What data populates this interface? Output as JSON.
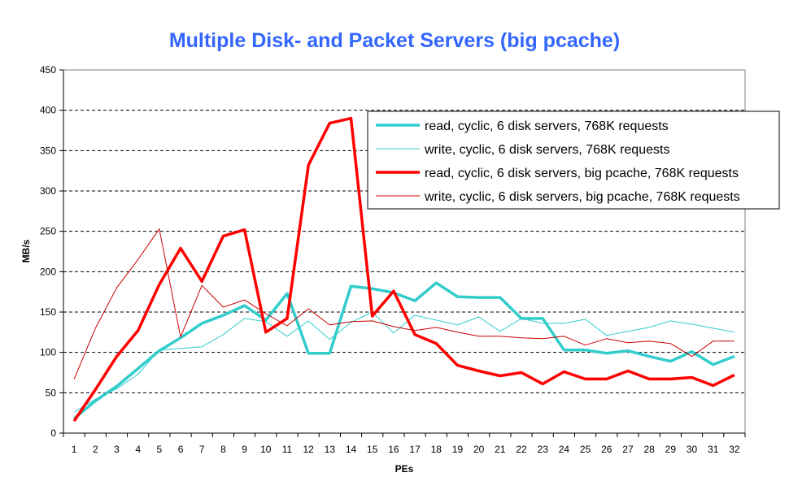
{
  "chart_data": {
    "type": "line",
    "title": "Multiple Disk- and Packet Servers (big pcache)",
    "xlabel": "PEs",
    "ylabel": "MB/s",
    "ylim": [
      0,
      450
    ],
    "yticks": [
      0,
      50,
      100,
      150,
      200,
      250,
      300,
      350,
      400,
      450
    ],
    "x": [
      1,
      2,
      3,
      4,
      5,
      6,
      7,
      8,
      9,
      10,
      11,
      12,
      13,
      14,
      15,
      16,
      17,
      18,
      19,
      20,
      21,
      22,
      23,
      24,
      25,
      26,
      27,
      28,
      29,
      30,
      31,
      32
    ],
    "grid": "horizontal dashed",
    "legend": "upper-right",
    "series": [
      {
        "name": "read, cyclic, 6 disk servers, 768K requests",
        "color": "#33cccc",
        "width": 3.5,
        "values": [
          18,
          40,
          58,
          80,
          102,
          118,
          136,
          146,
          158,
          140,
          173,
          99,
          99,
          182,
          179,
          174,
          164,
          186,
          169,
          168,
          168,
          142,
          142,
          103,
          103,
          99,
          102,
          95,
          89,
          101,
          85,
          95
        ]
      },
      {
        "name": "write, cyclic, 6 disk servers, 768K requests",
        "color": "#33cccc",
        "width": 1,
        "values": [
          26,
          42,
          55,
          73,
          103,
          105,
          107,
          122,
          142,
          138,
          120,
          139,
          116,
          137,
          150,
          124,
          146,
          140,
          134,
          144,
          126,
          142,
          136,
          136,
          141,
          121,
          126,
          131,
          139,
          135,
          130,
          125
        ]
      },
      {
        "name": "read, cyclic, 6 disk servers, big pcache, 768K requests",
        "color": "#ff0000",
        "width": 3.5,
        "values": [
          15,
          54,
          95,
          127,
          184,
          229,
          188,
          244,
          252,
          125,
          142,
          332,
          384,
          390,
          145,
          176,
          122,
          111,
          84,
          77,
          71,
          75,
          61,
          76,
          67,
          67,
          77,
          67,
          67,
          69,
          59,
          72
        ]
      },
      {
        "name": "write, cyclic, 6 disk servers, big pcache, 768K requests",
        "color": "#cc0000",
        "width": 1,
        "values": [
          67,
          130,
          180,
          215,
          253,
          119,
          183,
          156,
          165,
          148,
          133,
          154,
          134,
          138,
          139,
          132,
          127,
          131,
          125,
          120,
          120,
          118,
          117,
          120,
          109,
          117,
          112,
          114,
          111,
          95,
          114,
          114
        ]
      }
    ]
  }
}
